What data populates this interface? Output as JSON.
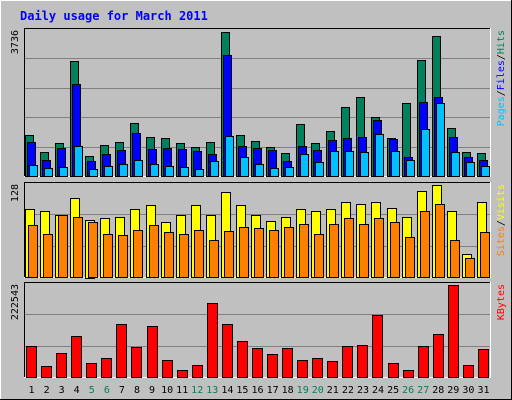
{
  "title": "Daily usage for March 2011",
  "colors": {
    "background": "#c0c0c0",
    "title": "#0000ff",
    "hits": "#00805c",
    "files": "#0000ff",
    "pages": "#00c0ff",
    "visits": "#ffff00",
    "sites": "#ff8000",
    "kbytes": "#ff0000",
    "weekend_label": "#00805c",
    "weekday_label": "#000000"
  },
  "chart_data": [
    {
      "type": "bar",
      "panel": "hits-files-pages",
      "y_max_label": "3736",
      "ylim": [
        0,
        3736
      ],
      "legend": [
        "Pages",
        "/",
        "Files",
        "/",
        "Hits"
      ],
      "categories": [
        "1",
        "2",
        "3",
        "4",
        "5",
        "6",
        "7",
        "8",
        "9",
        "10",
        "11",
        "12",
        "13",
        "14",
        "15",
        "16",
        "17",
        "18",
        "19",
        "20",
        "21",
        "22",
        "23",
        "24",
        "25",
        "26",
        "27",
        "28",
        "29",
        "30",
        "31"
      ],
      "weekend_days": [
        "5",
        "6",
        "12",
        "13",
        "19",
        "20",
        "26",
        "27"
      ],
      "series": [
        {
          "name": "Hits",
          "values": [
            1060,
            620,
            840,
            2960,
            520,
            800,
            880,
            1370,
            1000,
            980,
            840,
            760,
            880,
            3720,
            1050,
            900,
            760,
            600,
            1340,
            850,
            1160,
            1780,
            2040,
            1520,
            980,
            1880,
            3000,
            3600,
            1230,
            610,
            600
          ]
        },
        {
          "name": "Files",
          "values": [
            880,
            400,
            720,
            2360,
            380,
            560,
            680,
            1100,
            700,
            720,
            700,
            640,
            560,
            3120,
            780,
            720,
            680,
            380,
            780,
            660,
            930,
            980,
            1000,
            1430,
            960,
            500,
            1900,
            2040,
            1000,
            500,
            420
          ]
        },
        {
          "name": "Pages",
          "values": [
            280,
            200,
            220,
            780,
            180,
            260,
            300,
            400,
            300,
            260,
            220,
            190,
            390,
            1020,
            500,
            320,
            200,
            240,
            560,
            360,
            640,
            640,
            620,
            1080,
            640,
            400,
            1200,
            1880,
            620,
            360,
            260
          ]
        }
      ]
    },
    {
      "type": "bar",
      "panel": "visits-sites",
      "y_max_label": "128",
      "ylim": [
        0,
        128
      ],
      "legend": [
        "Sites",
        "/",
        "Visits"
      ],
      "categories": [
        "1",
        "2",
        "3",
        "4",
        "5",
        "6",
        "7",
        "8",
        "9",
        "10",
        "11",
        "12",
        "13",
        "14",
        "15",
        "16",
        "17",
        "18",
        "19",
        "20",
        "21",
        "22",
        "23",
        "24",
        "25",
        "26",
        "27",
        "28",
        "29",
        "30",
        "31"
      ],
      "weekend_days": [
        "5",
        "6",
        "12",
        "13",
        "19",
        "20",
        "26",
        "27"
      ],
      "series": [
        {
          "name": "Visits",
          "values": [
            94,
            92,
            86,
            110,
            80,
            82,
            84,
            94,
            100,
            76,
            86,
            100,
            86,
            118,
            100,
            86,
            78,
            84,
            94,
            92,
            94,
            104,
            102,
            104,
            96,
            84,
            120,
            128,
            92,
            32,
            104
          ]
        },
        {
          "name": "Sites",
          "values": [
            72,
            60,
            86,
            84,
            76,
            60,
            58,
            66,
            72,
            62,
            60,
            66,
            52,
            64,
            70,
            68,
            66,
            70,
            74,
            60,
            74,
            82,
            74,
            82,
            76,
            56,
            92,
            102,
            52,
            26,
            62
          ]
        }
      ]
    },
    {
      "type": "bar",
      "panel": "kbytes",
      "y_max_label": "222543",
      "ylim": [
        0,
        222543
      ],
      "legend": [
        "KBytes"
      ],
      "categories": [
        "1",
        "2",
        "3",
        "4",
        "5",
        "6",
        "7",
        "8",
        "9",
        "10",
        "11",
        "12",
        "13",
        "14",
        "15",
        "16",
        "17",
        "18",
        "19",
        "20",
        "21",
        "22",
        "23",
        "24",
        "25",
        "26",
        "27",
        "28",
        "29",
        "30",
        "31"
      ],
      "weekend_days": [
        "5",
        "6",
        "12",
        "13",
        "19",
        "20",
        "26",
        "27"
      ],
      "series": [
        {
          "name": "KBytes",
          "values": [
            76000,
            26000,
            57000,
            98000,
            34000,
            47000,
            128000,
            73000,
            123000,
            40000,
            18000,
            30000,
            179000,
            128000,
            87000,
            70000,
            55000,
            70000,
            40000,
            47000,
            39000,
            76000,
            78000,
            150000,
            35000,
            17000,
            74000,
            104000,
            222543,
            28000,
            68000
          ]
        }
      ]
    }
  ]
}
